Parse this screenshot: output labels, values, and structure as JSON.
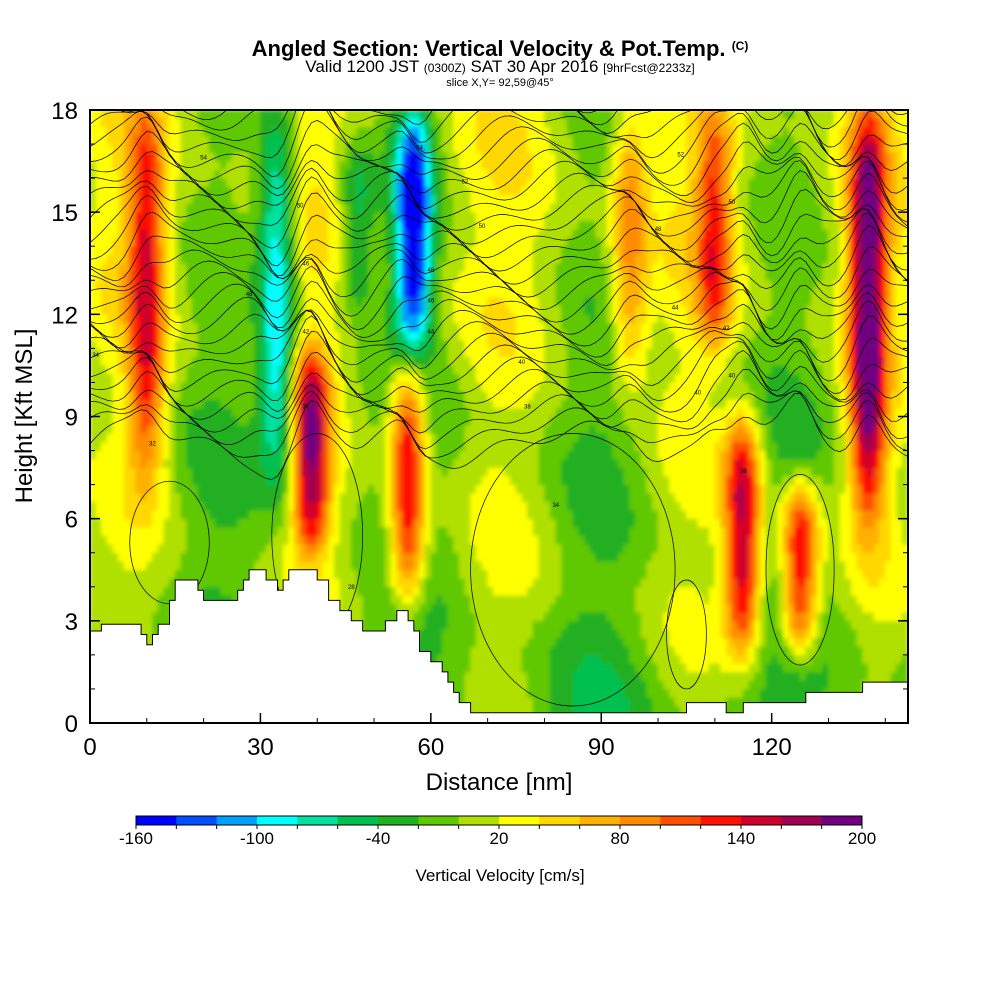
{
  "header": {
    "title_main": "Angled Section: Vertical Velocity & Pot.Temp.",
    "title_unit": "(C)",
    "valid_a": "Valid 1200 JST",
    "valid_utc": "(0300Z)",
    "valid_b": "SAT 30 Apr 2016",
    "valid_fcst": "[9hrFcst@2233z]",
    "slice": "slice X,Y= 92,59@45°"
  },
  "chart_data": {
    "type": "heatmap",
    "xlabel": "Distance [nm]",
    "ylabel": "Height [Kft MSL]",
    "xlim": [
      0,
      144
    ],
    "ylim": [
      0,
      18
    ],
    "x_ticks": [
      0,
      30,
      60,
      90,
      120
    ],
    "y_ticks": [
      0,
      3,
      6,
      9,
      12,
      15,
      18
    ],
    "colorbar": {
      "label": "Vertical Velocity [cm/s]",
      "range": [
        -160,
        200
      ],
      "tick_values": [
        -160,
        -100,
        -40,
        20,
        80,
        140,
        200
      ],
      "levels": [
        -160,
        -140,
        -120,
        -100,
        -80,
        -60,
        -40,
        -20,
        0,
        20,
        40,
        60,
        80,
        100,
        120,
        140,
        160,
        180,
        200
      ],
      "colors": [
        "#0000ff",
        "#0050ff",
        "#00a0ff",
        "#00ffff",
        "#00e0a0",
        "#00c050",
        "#20b020",
        "#60c800",
        "#b0e000",
        "#ffff00",
        "#ffd800",
        "#ffb000",
        "#ff8c00",
        "#ff5000",
        "#ff1000",
        "#d0002a",
        "#a00050",
        "#700080"
      ]
    },
    "updrafts": [
      {
        "x": 10,
        "h_min": 7,
        "h_max": 18,
        "w": 120
      },
      {
        "x": 39,
        "h_min": 5,
        "h_max": 11,
        "w": 160
      },
      {
        "x": 56,
        "h_min": 3.5,
        "h_max": 10.5,
        "w": 150
      },
      {
        "x": 95,
        "h_min": 10,
        "h_max": 18,
        "w": 80
      },
      {
        "x": 110,
        "h_min": 11,
        "h_max": 18,
        "w": 100
      },
      {
        "x": 115,
        "h_min": 2,
        "h_max": 9,
        "w": 160
      },
      {
        "x": 125,
        "h_min": 2,
        "h_max": 7,
        "w": 150
      },
      {
        "x": 137,
        "h_min": 6,
        "h_max": 18,
        "w": 185
      }
    ],
    "downdrafts": [
      {
        "x": 33,
        "h_min": 7,
        "h_max": 18,
        "w": -110
      },
      {
        "x": 57,
        "h_min": 11,
        "h_max": 18,
        "w": -160
      },
      {
        "x": 47,
        "h_min": 12,
        "h_max": 17,
        "w": -60
      }
    ],
    "terrain": [
      [
        0,
        2.7
      ],
      [
        2,
        2.9
      ],
      [
        8,
        2.9
      ],
      [
        9,
        2.6
      ],
      [
        10,
        2.3
      ],
      [
        11,
        2.6
      ],
      [
        12,
        2.9
      ],
      [
        14,
        3.6
      ],
      [
        15,
        4.2
      ],
      [
        18,
        4.2
      ],
      [
        19,
        3.9
      ],
      [
        20,
        3.6
      ],
      [
        25,
        3.6
      ],
      [
        26,
        3.9
      ],
      [
        27,
        4.2
      ],
      [
        28,
        4.5
      ],
      [
        30,
        4.5
      ],
      [
        31,
        4.2
      ],
      [
        33,
        3.9
      ],
      [
        34,
        4.2
      ],
      [
        35,
        4.5
      ],
      [
        39,
        4.5
      ],
      [
        40,
        4.2
      ],
      [
        42,
        3.6
      ],
      [
        44,
        3.3
      ],
      [
        46,
        3.0
      ],
      [
        48,
        2.7
      ],
      [
        50,
        2.7
      ],
      [
        52,
        3.0
      ],
      [
        54,
        3.3
      ],
      [
        56,
        3.0
      ],
      [
        57,
        2.7
      ],
      [
        58,
        2.1
      ],
      [
        60,
        1.8
      ],
      [
        62,
        1.5
      ],
      [
        63,
        1.2
      ],
      [
        64,
        0.9
      ],
      [
        65,
        0.6
      ],
      [
        67,
        0.3
      ],
      [
        80,
        0.3
      ],
      [
        95,
        0.3
      ],
      [
        100,
        0.3
      ],
      [
        105,
        0.6
      ],
      [
        108,
        0.6
      ],
      [
        112,
        0.3
      ],
      [
        115,
        0.6
      ],
      [
        120,
        0.6
      ],
      [
        126,
        0.9
      ],
      [
        130,
        0.9
      ],
      [
        136,
        1.2
      ],
      [
        144,
        1.2
      ]
    ],
    "theta_labels": [
      {
        "x": 1,
        "h": 10.8,
        "text": "34"
      },
      {
        "x": 11,
        "h": 8.2,
        "text": "32"
      },
      {
        "x": 20,
        "h": 16.6,
        "text": "54"
      },
      {
        "x": 28,
        "h": 12.6,
        "text": "48"
      },
      {
        "x": 37,
        "h": 15.2,
        "text": "50"
      },
      {
        "x": 38,
        "h": 13.5,
        "text": "46"
      },
      {
        "x": 38,
        "h": 11.5,
        "text": "42"
      },
      {
        "x": 38,
        "h": 9.3,
        "text": "36"
      },
      {
        "x": 58,
        "h": 16.9,
        "text": "54"
      },
      {
        "x": 60,
        "h": 13.3,
        "text": "48"
      },
      {
        "x": 60,
        "h": 12.4,
        "text": "46"
      },
      {
        "x": 60,
        "h": 11.5,
        "text": "44"
      },
      {
        "x": 66,
        "h": 15.9,
        "text": "52"
      },
      {
        "x": 69,
        "h": 14.6,
        "text": "50"
      },
      {
        "x": 76,
        "h": 10.6,
        "text": "40"
      },
      {
        "x": 77,
        "h": 9.3,
        "text": "38"
      },
      {
        "x": 82,
        "h": 6.4,
        "text": "34"
      },
      {
        "x": 46,
        "h": 4.0,
        "text": "28"
      },
      {
        "x": 100,
        "h": 14.5,
        "text": "48"
      },
      {
        "x": 104,
        "h": 16.7,
        "text": "52"
      },
      {
        "x": 103,
        "h": 12.2,
        "text": "44"
      },
      {
        "x": 107,
        "h": 9.7,
        "text": "40"
      },
      {
        "x": 112,
        "h": 11.6,
        "text": "42"
      },
      {
        "x": 113,
        "h": 10.2,
        "text": "40"
      },
      {
        "x": 113,
        "h": 15.3,
        "text": "50"
      },
      {
        "x": 115,
        "h": 7.4,
        "text": "36"
      }
    ]
  }
}
